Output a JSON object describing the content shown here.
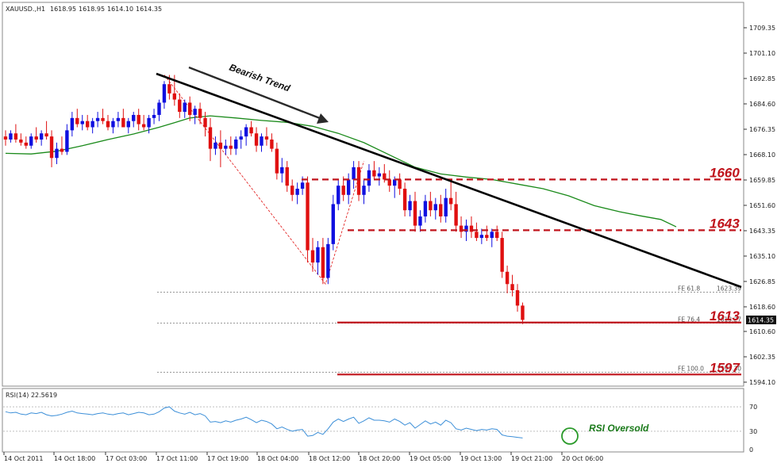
{
  "header": {
    "symbol": "XAUUSD.,H1",
    "open": "1618.95",
    "high": "1618.95",
    "low": "1614.10",
    "close": "1614.35"
  },
  "rsi_header": "RSI(14) 22.5619",
  "current_price": "1614.35",
  "annotations": {
    "trend_label": "Bearish Trend",
    "rsi_label": "RSI Oversold",
    "levels": [
      {
        "label": "1660",
        "value": 1660.0
      },
      {
        "label": "1643",
        "value": 1643.5
      },
      {
        "label": "1613",
        "value": 1613.5
      },
      {
        "label": "1597",
        "value": 1596.6
      }
    ],
    "fe": [
      {
        "label": "FE 61.8",
        "price_label": "1623.39",
        "value": 1623.39
      },
      {
        "label": "FE 76.4",
        "price_label": "1613.27",
        "value": 1613.27
      },
      {
        "label": "FE 100.0",
        "price_label": "1597.30",
        "value": 1597.3
      }
    ]
  },
  "colors": {
    "bull": "#1010e0",
    "bear": "#e01010",
    "ma": "#1a8a1a",
    "trendline": "#000000",
    "level": "#c0141c",
    "rsi_line": "#3c8fd8",
    "oversold_circle": "#2a9a2a"
  },
  "chart_data": {
    "type": "candlestick",
    "title": "XAUUSD.,H1",
    "y_ticks": [
      "1709.35",
      "1701.10",
      "1692.85",
      "1684.60",
      "1676.35",
      "1668.10",
      "1659.85",
      "1651.60",
      "1643.35",
      "1635.10",
      "1626.85",
      "1618.60",
      "1610.60",
      "1602.35",
      "1594.10"
    ],
    "x_ticks": [
      "14 Oct 2011",
      "14 Oct 18:00",
      "17 Oct 03:00",
      "17 Oct 11:00",
      "17 Oct 19:00",
      "18 Oct 04:00",
      "18 Oct 12:00",
      "18 Oct 20:00",
      "19 Oct 05:00",
      "19 Oct 13:00",
      "19 Oct 21:00",
      "20 Oct 06:00"
    ],
    "ylim": [
      1591,
      1713
    ],
    "rsi_ticks": [
      "70",
      "30",
      "0"
    ],
    "rsi_ylim": [
      0,
      100
    ],
    "moving_average": [
      [
        0,
        1668.5
      ],
      [
        5,
        1668.3
      ],
      [
        10,
        1669.2
      ],
      [
        15,
        1671.0
      ],
      [
        20,
        1673.0
      ],
      [
        25,
        1674.8
      ],
      [
        30,
        1677.0
      ],
      [
        33,
        1678.5
      ],
      [
        36,
        1680.0
      ],
      [
        40,
        1680.7
      ],
      [
        45,
        1680.0
      ],
      [
        50,
        1679.2
      ],
      [
        55,
        1678.6
      ],
      [
        60,
        1677.3
      ],
      [
        65,
        1675.0
      ],
      [
        70,
        1672.0
      ],
      [
        75,
        1668.0
      ],
      [
        80,
        1664.0
      ],
      [
        85,
        1661.8
      ],
      [
        90,
        1660.8
      ],
      [
        95,
        1660.0
      ],
      [
        100,
        1658.5
      ],
      [
        105,
        1657.0
      ],
      [
        110,
        1654.7
      ],
      [
        115,
        1651.5
      ],
      [
        120,
        1649.5
      ],
      [
        124,
        1648.2
      ],
      [
        128,
        1647.0
      ],
      [
        131,
        1644.6
      ]
    ],
    "candles": [
      [
        1674,
        1676,
        1671,
        1673
      ],
      [
        1673,
        1676,
        1672,
        1675
      ],
      [
        1675,
        1678,
        1672,
        1673
      ],
      [
        1673,
        1675,
        1671,
        1672
      ],
      [
        1672,
        1674,
        1670,
        1671
      ],
      [
        1671,
        1675,
        1670,
        1674
      ],
      [
        1674,
        1677,
        1672,
        1673
      ],
      [
        1673,
        1676,
        1671,
        1675
      ],
      [
        1675,
        1679,
        1673,
        1674
      ],
      [
        1674,
        1676,
        1664,
        1667
      ],
      [
        1667,
        1672,
        1665,
        1670
      ],
      [
        1670,
        1674,
        1668,
        1669
      ],
      [
        1669,
        1678,
        1668,
        1676
      ],
      [
        1676,
        1682,
        1674,
        1680
      ],
      [
        1680,
        1683,
        1677,
        1678
      ],
      [
        1678,
        1681,
        1676,
        1679
      ],
      [
        1679,
        1681,
        1676,
        1677
      ],
      [
        1677,
        1680,
        1675,
        1679
      ],
      [
        1679,
        1682,
        1677,
        1680
      ],
      [
        1680,
        1683,
        1678,
        1679
      ],
      [
        1679,
        1681,
        1676,
        1677
      ],
      [
        1677,
        1680,
        1675,
        1679
      ],
      [
        1679,
        1682,
        1677,
        1680
      ],
      [
        1680,
        1683,
        1678,
        1677
      ],
      [
        1677,
        1680,
        1675,
        1679
      ],
      [
        1679,
        1682,
        1677,
        1681
      ],
      [
        1681,
        1683,
        1676,
        1678
      ],
      [
        1678,
        1681,
        1676,
        1677
      ],
      [
        1677,
        1681,
        1675,
        1680
      ],
      [
        1680,
        1683,
        1678,
        1681
      ],
      [
        1681,
        1686,
        1679,
        1685
      ],
      [
        1685,
        1692,
        1683,
        1691
      ],
      [
        1691,
        1694,
        1686,
        1688
      ],
      [
        1688,
        1694,
        1684,
        1686
      ],
      [
        1686,
        1688,
        1680,
        1682
      ],
      [
        1682,
        1686,
        1680,
        1685
      ],
      [
        1685,
        1687,
        1679,
        1681
      ],
      [
        1681,
        1684,
        1678,
        1683
      ],
      [
        1683,
        1685,
        1678,
        1680
      ],
      [
        1680,
        1682,
        1674,
        1677
      ],
      [
        1677,
        1680,
        1666,
        1670
      ],
      [
        1670,
        1674,
        1668,
        1672
      ],
      [
        1672,
        1676,
        1664,
        1670
      ],
      [
        1670,
        1673,
        1668,
        1671
      ],
      [
        1671,
        1674,
        1668,
        1670
      ],
      [
        1670,
        1674,
        1668,
        1673
      ],
      [
        1673,
        1676,
        1670,
        1674
      ],
      [
        1674,
        1678,
        1671,
        1677
      ],
      [
        1677,
        1679,
        1674,
        1675
      ],
      [
        1675,
        1677,
        1669,
        1671
      ],
      [
        1671,
        1675,
        1669,
        1674
      ],
      [
        1674,
        1677,
        1671,
        1673
      ],
      [
        1673,
        1675,
        1669,
        1670
      ],
      [
        1670,
        1672,
        1660,
        1662
      ],
      [
        1662,
        1667,
        1659,
        1664
      ],
      [
        1664,
        1666,
        1656,
        1658
      ],
      [
        1658,
        1660,
        1653,
        1655
      ],
      [
        1655,
        1659,
        1652,
        1657
      ],
      [
        1657,
        1661,
        1655,
        1659
      ],
      [
        1659,
        1661,
        1633,
        1637
      ],
      [
        1637,
        1641,
        1630,
        1633
      ],
      [
        1633,
        1640,
        1629,
        1638
      ],
      [
        1638,
        1641,
        1626,
        1628
      ],
      [
        1628,
        1641,
        1626,
        1639
      ],
      [
        1639,
        1655,
        1637,
        1652
      ],
      [
        1652,
        1660,
        1650,
        1658
      ],
      [
        1658,
        1661,
        1653,
        1655
      ],
      [
        1655,
        1662,
        1652,
        1660
      ],
      [
        1660,
        1666,
        1657,
        1664
      ],
      [
        1664,
        1666,
        1653,
        1655
      ],
      [
        1655,
        1660,
        1652,
        1658
      ],
      [
        1658,
        1665,
        1656,
        1663
      ],
      [
        1663,
        1666,
        1660,
        1661
      ],
      [
        1661,
        1664,
        1658,
        1662
      ],
      [
        1662,
        1665,
        1659,
        1660
      ],
      [
        1660,
        1663,
        1656,
        1658
      ],
      [
        1658,
        1661,
        1654,
        1660
      ],
      [
        1660,
        1662,
        1655,
        1657
      ],
      [
        1657,
        1659,
        1648,
        1650
      ],
      [
        1650,
        1655,
        1648,
        1653
      ],
      [
        1653,
        1656,
        1643,
        1645
      ],
      [
        1645,
        1650,
        1643,
        1648
      ],
      [
        1648,
        1655,
        1646,
        1653
      ],
      [
        1653,
        1656,
        1648,
        1650
      ],
      [
        1650,
        1654,
        1647,
        1652
      ],
      [
        1652,
        1655,
        1646,
        1648
      ],
      [
        1648,
        1657,
        1646,
        1654
      ],
      [
        1654,
        1660,
        1650,
        1652
      ],
      [
        1652,
        1656,
        1643,
        1645
      ],
      [
        1645,
        1648,
        1641,
        1643
      ],
      [
        1643,
        1647,
        1640,
        1645
      ],
      [
        1645,
        1648,
        1641,
        1643
      ],
      [
        1643,
        1646,
        1640,
        1641
      ],
      [
        1641,
        1644,
        1639,
        1642
      ],
      [
        1642,
        1645,
        1640,
        1641
      ],
      [
        1641,
        1644,
        1638,
        1643
      ],
      [
        1643,
        1645,
        1640,
        1641
      ],
      [
        1641,
        1643,
        1628,
        1630
      ],
      [
        1630,
        1632,
        1623,
        1626
      ],
      [
        1626,
        1629,
        1622,
        1624
      ],
      [
        1624,
        1626,
        1617,
        1619
      ],
      [
        1619,
        1620,
        1613,
        1614.35
      ]
    ]
  }
}
